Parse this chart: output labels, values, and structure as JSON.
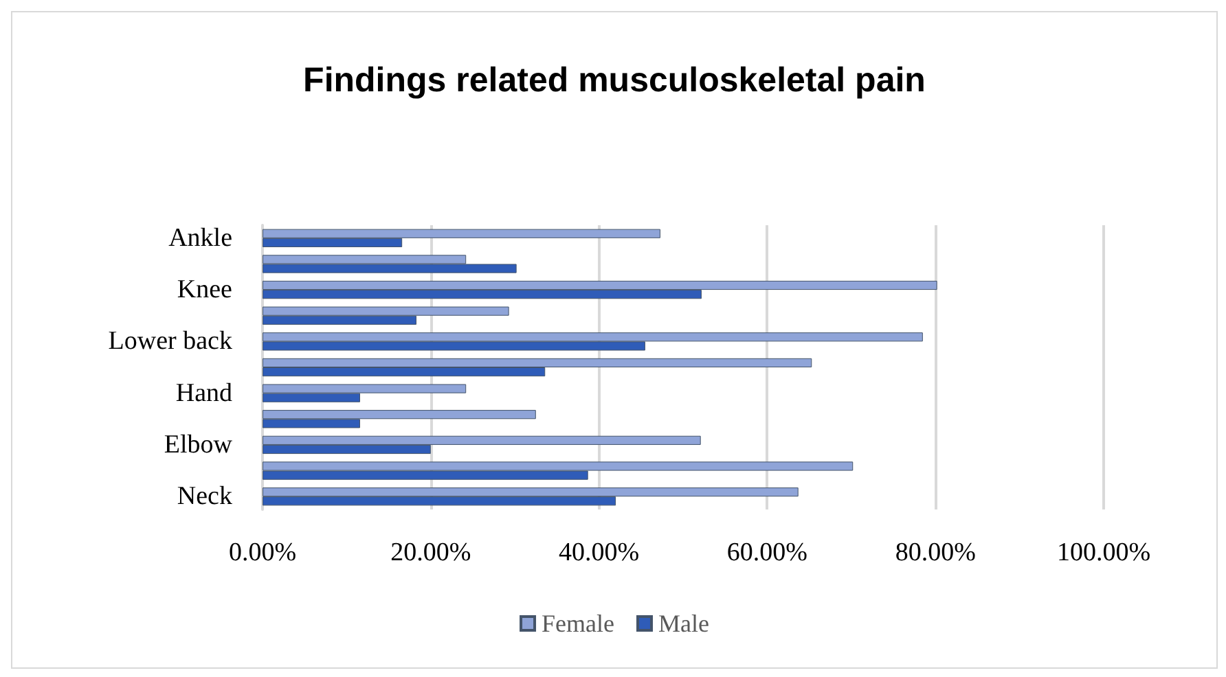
{
  "chart_data": {
    "type": "bar",
    "orientation": "horizontal",
    "title": "Findings related musculoskeletal pain",
    "categories": [
      "Ankle",
      null,
      "Knee",
      null,
      "Lower back",
      null,
      "Hand",
      null,
      "Elbow",
      null,
      "Neck"
    ],
    "series": [
      {
        "name": "Female",
        "color": "#8fa4d8",
        "values": [
          47.3,
          24.2,
          80.2,
          29.3,
          78.5,
          65.3,
          24.2,
          32.5,
          52.1,
          70.2,
          63.7
        ]
      },
      {
        "name": "Male",
        "color": "#2f5cb8",
        "values": [
          16.6,
          30.2,
          52.2,
          18.3,
          45.5,
          33.6,
          11.6,
          11.6,
          20,
          38.7,
          42
        ]
      }
    ],
    "xlim": [
      0,
      100
    ],
    "xticks": [
      {
        "value": 0,
        "label": "0.00%"
      },
      {
        "value": 20,
        "label": "20.00%"
      },
      {
        "value": 40,
        "label": "40.00%"
      },
      {
        "value": 60,
        "label": "60.00%"
      },
      {
        "value": 80,
        "label": "80.00%"
      },
      {
        "value": 100,
        "label": "100.00%"
      }
    ],
    "grid": "x",
    "legend": "bottom"
  }
}
